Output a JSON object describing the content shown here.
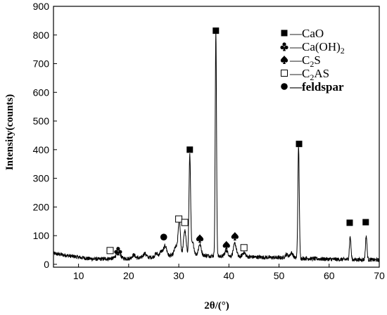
{
  "chart_data": {
    "type": "line",
    "xlabel": "2θ/(°)",
    "ylabel": "Intensity(counts)",
    "xlim": [
      5,
      70
    ],
    "ylim": [
      -10,
      900
    ],
    "x_ticks": [
      10,
      20,
      30,
      40,
      50,
      60,
      70
    ],
    "y_ticks": [
      0,
      100,
      200,
      300,
      400,
      500,
      600,
      700,
      800,
      900
    ],
    "grid": false,
    "legend_position": "top-right",
    "legend": [
      {
        "marker": "filled-square",
        "dash": "—",
        "label": "CaO"
      },
      {
        "marker": "club",
        "dash": "—",
        "label": "Ca(OH)",
        "sub": "2"
      },
      {
        "marker": "spade",
        "dash": "—",
        "label": "C",
        "sub": "2",
        "label_after": "S"
      },
      {
        "marker": "open-square",
        "dash": "—",
        "label": "C",
        "sub": "2",
        "label_after": "AS"
      },
      {
        "marker": "filled-circle",
        "dash": "—",
        "label": "feldspar",
        "bold": true
      }
    ],
    "baseline": [
      [
        5,
        38
      ],
      [
        8,
        30
      ],
      [
        10,
        25
      ],
      [
        12,
        20
      ],
      [
        14,
        18
      ],
      [
        16,
        20
      ],
      [
        18,
        22
      ],
      [
        20,
        20
      ],
      [
        22,
        22
      ],
      [
        24,
        24
      ],
      [
        26,
        26
      ],
      [
        28,
        30
      ],
      [
        30,
        32
      ],
      [
        32,
        34
      ],
      [
        34,
        32
      ],
      [
        36,
        30
      ],
      [
        38,
        28
      ],
      [
        40,
        28
      ],
      [
        42,
        26
      ],
      [
        44,
        26
      ],
      [
        46,
        25
      ],
      [
        48,
        24
      ],
      [
        50,
        23
      ],
      [
        52,
        22
      ],
      [
        54,
        21
      ],
      [
        56,
        20
      ],
      [
        58,
        19
      ],
      [
        60,
        18
      ],
      [
        62,
        17
      ],
      [
        64,
        17
      ],
      [
        66,
        16
      ],
      [
        68,
        16
      ],
      [
        70,
        15
      ]
    ],
    "peaks": [
      {
        "x": 17.8,
        "height": 20,
        "width": 0.3
      },
      {
        "x": 18.1,
        "height": 15,
        "width": 0.3
      },
      {
        "x": 21.0,
        "height": 12,
        "width": 0.3
      },
      {
        "x": 23.2,
        "height": 15,
        "width": 0.3
      },
      {
        "x": 25.5,
        "height": 12,
        "width": 0.3
      },
      {
        "x": 26.5,
        "height": 18,
        "width": 0.3
      },
      {
        "x": 27.3,
        "height": 35,
        "width": 0.3
      },
      {
        "x": 29.4,
        "height": 30,
        "width": 0.3
      },
      {
        "x": 30.1,
        "height": 125,
        "width": 0.22
      },
      {
        "x": 31.2,
        "height": 85,
        "width": 0.25
      },
      {
        "x": 32.2,
        "height": 345,
        "width": 0.16
      },
      {
        "x": 32.8,
        "height": 40,
        "width": 0.25
      },
      {
        "x": 34.2,
        "height": 38,
        "width": 0.28
      },
      {
        "x": 37.4,
        "height": 780,
        "width": 0.13
      },
      {
        "x": 39.5,
        "height": 20,
        "width": 0.3
      },
      {
        "x": 41.2,
        "height": 45,
        "width": 0.3
      },
      {
        "x": 43.0,
        "height": 15,
        "width": 0.3
      },
      {
        "x": 51.5,
        "height": 12,
        "width": 0.3
      },
      {
        "x": 52.5,
        "height": 18,
        "width": 0.3
      },
      {
        "x": 53.9,
        "height": 390,
        "width": 0.14
      },
      {
        "x": 64.2,
        "height": 80,
        "width": 0.15
      },
      {
        "x": 67.4,
        "height": 83,
        "width": 0.15
      }
    ],
    "annotations": [
      {
        "x": 16.3,
        "y": 48,
        "marker": "open-square"
      },
      {
        "x": 17.9,
        "y": 47,
        "marker": "club"
      },
      {
        "x": 27.0,
        "y": 95,
        "marker": "filled-circle"
      },
      {
        "x": 30.0,
        "y": 158,
        "marker": "open-square"
      },
      {
        "x": 31.2,
        "y": 146,
        "marker": "open-square"
      },
      {
        "x": 32.2,
        "y": 400,
        "marker": "filled-square"
      },
      {
        "x": 34.2,
        "y": 90,
        "marker": "spade"
      },
      {
        "x": 37.4,
        "y": 815,
        "marker": "filled-square"
      },
      {
        "x": 39.5,
        "y": 67,
        "marker": "spade"
      },
      {
        "x": 41.2,
        "y": 98,
        "marker": "spade"
      },
      {
        "x": 43.0,
        "y": 58,
        "marker": "open-square"
      },
      {
        "x": 54.0,
        "y": 420,
        "marker": "filled-square"
      },
      {
        "x": 64.1,
        "y": 145,
        "marker": "filled-square"
      },
      {
        "x": 67.3,
        "y": 147,
        "marker": "filled-square"
      }
    ],
    "colors": {
      "line": "#000000",
      "axes": "#000000",
      "background": "#ffffff"
    }
  }
}
